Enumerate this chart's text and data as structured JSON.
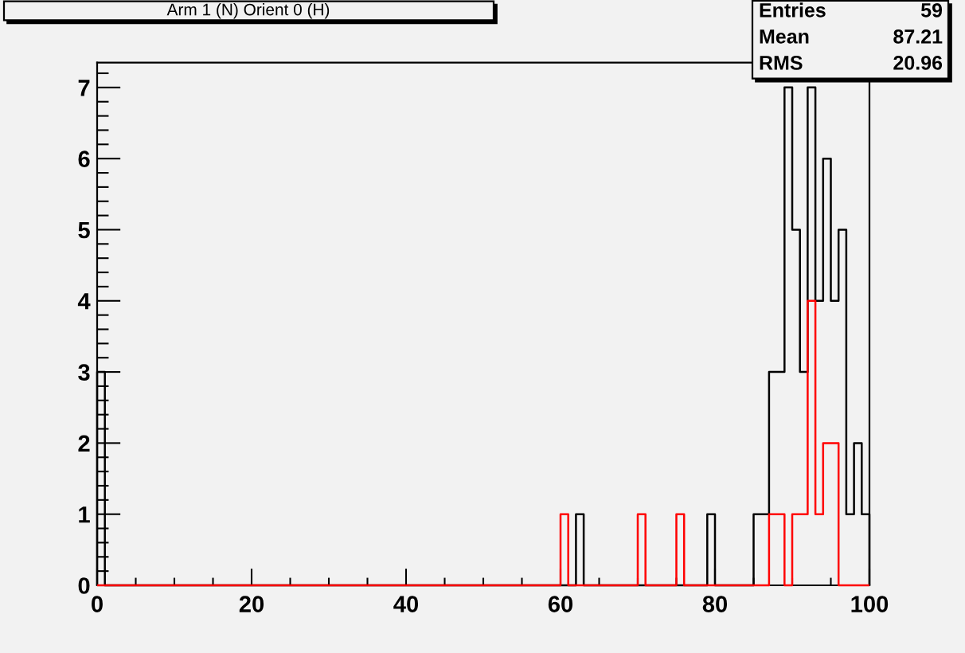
{
  "chart_data": {
    "type": "histogram",
    "title": "Arm 1 (N) Orient 0 (H)",
    "bins": [
      0,
      1,
      2,
      3,
      4,
      5,
      6,
      7,
      8,
      9,
      10,
      11,
      12,
      13,
      14,
      15,
      16,
      17,
      18,
      19,
      20,
      21,
      22,
      23,
      24,
      25,
      26,
      27,
      28,
      29,
      30,
      31,
      32,
      33,
      34,
      35,
      36,
      37,
      38,
      39,
      40,
      41,
      42,
      43,
      44,
      45,
      46,
      47,
      48,
      49,
      50,
      51,
      52,
      53,
      54,
      55,
      56,
      57,
      58,
      59,
      60,
      61,
      62,
      63,
      64,
      65,
      66,
      67,
      68,
      69,
      70,
      71,
      72,
      73,
      74,
      75,
      76,
      77,
      78,
      79,
      80,
      81,
      82,
      83,
      84,
      85,
      86,
      87,
      88,
      89,
      90,
      91,
      92,
      93,
      94,
      95,
      96,
      97,
      98,
      99,
      100
    ],
    "series": [
      {
        "color": "#000000",
        "values": [
          3,
          0,
          0,
          0,
          0,
          0,
          0,
          0,
          0,
          0,
          0,
          0,
          0,
          0,
          0,
          0,
          0,
          0,
          0,
          0,
          0,
          0,
          0,
          0,
          0,
          0,
          0,
          0,
          0,
          0,
          0,
          0,
          0,
          0,
          0,
          0,
          0,
          0,
          0,
          0,
          0,
          0,
          0,
          0,
          0,
          0,
          0,
          0,
          0,
          0,
          0,
          0,
          0,
          0,
          0,
          0,
          0,
          0,
          0,
          0,
          0,
          0,
          1,
          0,
          0,
          0,
          0,
          0,
          0,
          0,
          0,
          0,
          0,
          0,
          0,
          0,
          0,
          0,
          0,
          1,
          0,
          0,
          0,
          0,
          0,
          1,
          1,
          3,
          3,
          7,
          5,
          3,
          7,
          4,
          6,
          4,
          5,
          1,
          2,
          1
        ]
      },
      {
        "color": "#ff0000",
        "values": [
          0,
          0,
          0,
          0,
          0,
          0,
          0,
          0,
          0,
          0,
          0,
          0,
          0,
          0,
          0,
          0,
          0,
          0,
          0,
          0,
          0,
          0,
          0,
          0,
          0,
          0,
          0,
          0,
          0,
          0,
          0,
          0,
          0,
          0,
          0,
          0,
          0,
          0,
          0,
          0,
          0,
          0,
          0,
          0,
          0,
          0,
          0,
          0,
          0,
          0,
          0,
          0,
          0,
          0,
          0,
          0,
          0,
          0,
          0,
          0,
          1,
          0,
          0,
          0,
          0,
          0,
          0,
          0,
          0,
          0,
          1,
          0,
          0,
          0,
          0,
          1,
          0,
          0,
          0,
          0,
          0,
          0,
          0,
          0,
          0,
          0,
          0,
          1,
          1,
          0,
          1,
          1,
          4,
          1,
          2,
          2,
          0,
          0,
          0,
          0
        ]
      }
    ],
    "xlim": [
      0,
      100
    ],
    "ylim": [
      0,
      7.35
    ],
    "xticks": [
      0,
      {
        "value": 5,
        "label": null
      },
      {
        "value": 10,
        "label": null
      },
      {
        "value": 15,
        "label": null
      },
      20,
      {
        "value": 25,
        "label": null
      },
      {
        "value": 30,
        "label": null
      },
      {
        "value": 35,
        "label": null
      },
      40,
      {
        "value": 45,
        "label": null
      },
      {
        "value": 50,
        "label": null
      },
      {
        "value": 55,
        "label": null
      },
      60,
      {
        "value": 65,
        "label": null
      },
      {
        "value": 70,
        "label": null
      },
      {
        "value": 75,
        "label": null
      },
      80,
      {
        "value": 85,
        "label": null
      },
      {
        "value": 90,
        "label": null
      },
      {
        "value": 95,
        "label": null
      },
      100
    ],
    "yticks": [
      0,
      {
        "value": 0.2,
        "label": null
      },
      {
        "value": 0.4,
        "label": null
      },
      {
        "value": 0.6,
        "label": null
      },
      {
        "value": 0.8,
        "label": null
      },
      1,
      {
        "value": 1.2,
        "label": null
      },
      {
        "value": 1.4,
        "label": null
      },
      {
        "value": 1.6,
        "label": null
      },
      {
        "value": 1.8,
        "label": null
      },
      2,
      {
        "value": 2.2,
        "label": null
      },
      {
        "value": 2.4,
        "label": null
      },
      {
        "value": 2.6,
        "label": null
      },
      {
        "value": 2.8,
        "label": null
      },
      3,
      {
        "value": 3.2,
        "label": null
      },
      {
        "value": 3.4,
        "label": null
      },
      {
        "value": 3.6,
        "label": null
      },
      {
        "value": 3.8,
        "label": null
      },
      4,
      {
        "value": 4.2,
        "label": null
      },
      {
        "value": 4.4,
        "label": null
      },
      {
        "value": 4.6,
        "label": null
      },
      {
        "value": 4.8,
        "label": null
      },
      5,
      {
        "value": 5.2,
        "label": null
      },
      {
        "value": 5.4,
        "label": null
      },
      {
        "value": 5.6,
        "label": null
      },
      {
        "value": 5.8,
        "label": null
      },
      6,
      {
        "value": 6.2,
        "label": null
      },
      {
        "value": 6.4,
        "label": null
      },
      {
        "value": 6.6,
        "label": null
      },
      {
        "value": 6.8,
        "label": null
      },
      7,
      {
        "value": 7.2,
        "label": null
      }
    ],
    "annotations": [
      "Entries",
      "59",
      "Mean",
      "87.21",
      "RMS",
      "20.96"
    ]
  }
}
